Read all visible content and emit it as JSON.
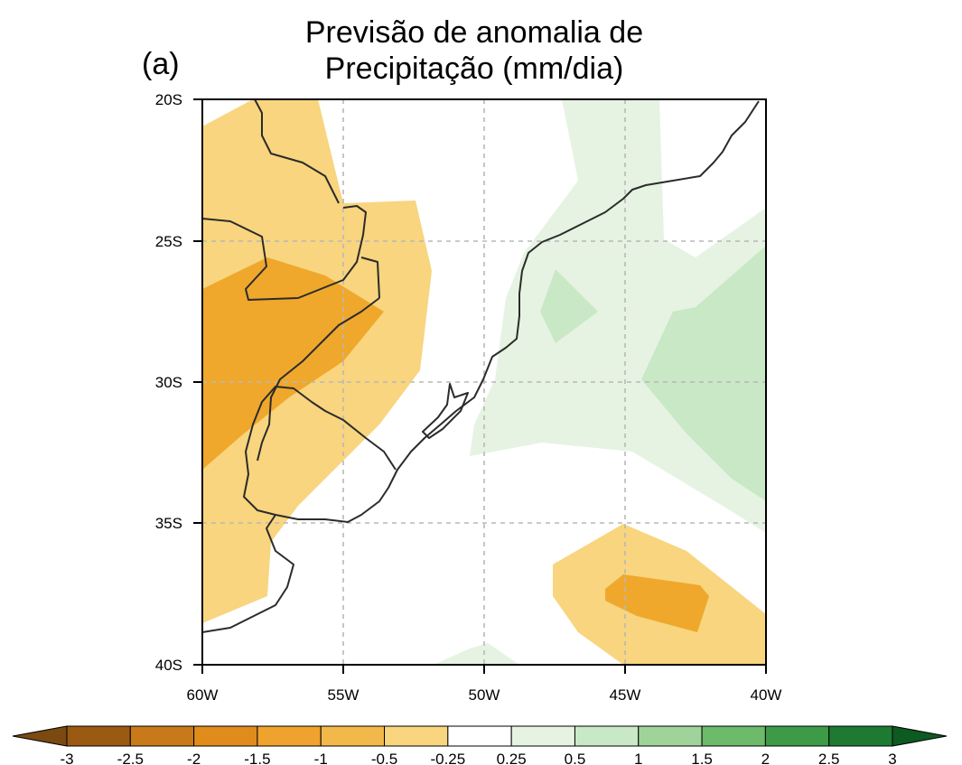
{
  "title": {
    "line1": "Previsão de anomalia de",
    "line2": "Precipitação (mm/dia)"
  },
  "panel_label": "(a)",
  "map": {
    "lon_range": [
      -60,
      -40
    ],
    "lat_range": [
      -40,
      -20
    ],
    "grid": "dashed",
    "lat_ticks": [
      "20S",
      "25S",
      "30S",
      "35S",
      "40S"
    ],
    "lon_ticks": [
      "60W",
      "55W",
      "50W",
      "45W",
      "40W"
    ]
  },
  "colorbar": {
    "labels": [
      "-3",
      "-2.5",
      "-2",
      "-1.5",
      "-1",
      "-0.5",
      "-0.25",
      "0.25",
      "0.5",
      "1",
      "1.5",
      "2",
      "2.5",
      "3"
    ],
    "colors": [
      "#7a4a10",
      "#9b5a12",
      "#c87a1a",
      "#e08c1c",
      "#efa22e",
      "#f3b84a",
      "#f8d57e",
      "#ffffff",
      "#e6f3e2",
      "#c9e8c5",
      "#9fd39a",
      "#6cba6a",
      "#3d9a47",
      "#1e7a32",
      "#0d5a22"
    ]
  }
}
